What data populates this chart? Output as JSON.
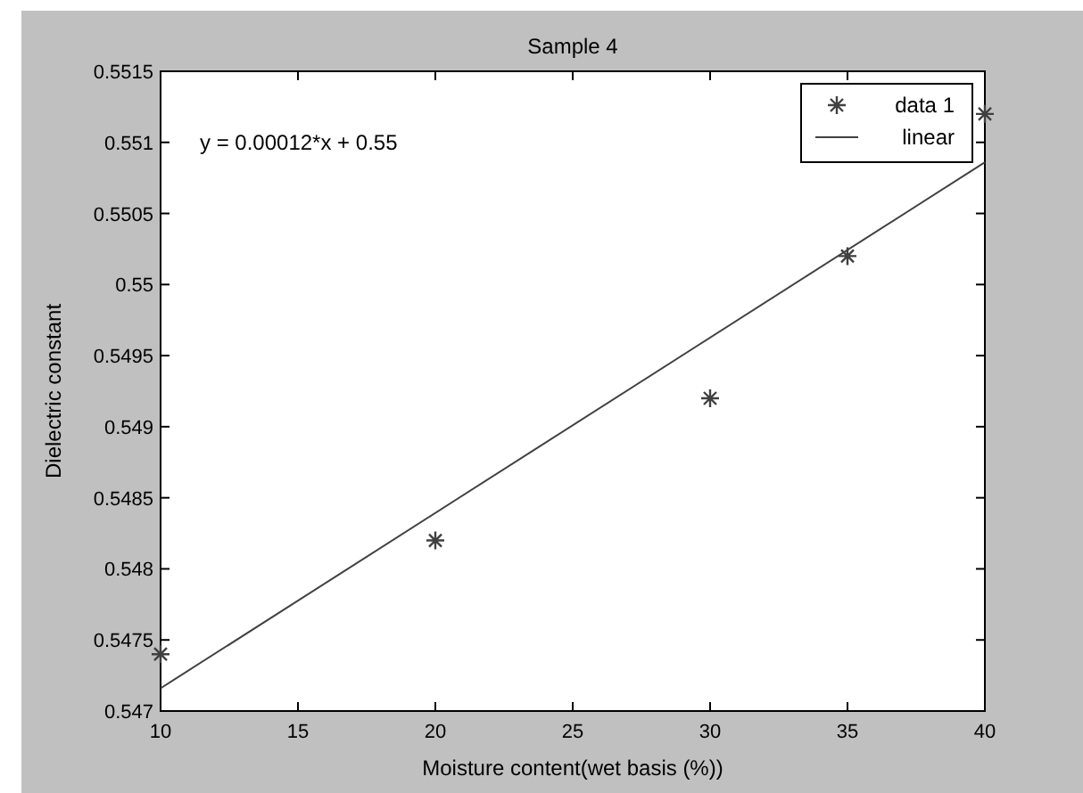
{
  "chart_data": {
    "type": "scatter",
    "title": "Sample 4",
    "xlabel": "Moisture content(wet basis (%))",
    "ylabel": "Dielectric constant",
    "annotations": [
      "y = 0.00012*x + 0.55"
    ],
    "xlim": [
      10,
      40
    ],
    "xticks": [
      10,
      15,
      20,
      25,
      30,
      35,
      40
    ],
    "ylim": [
      0.547,
      0.5515
    ],
    "yticks": [
      0.547,
      0.5475,
      0.548,
      0.5485,
      0.549,
      0.5495,
      0.55,
      0.5505,
      0.551,
      0.5515
    ],
    "legend": "top right",
    "grid": false,
    "series": [
      {
        "name": "data 1",
        "marker": "cross",
        "color": "#404040",
        "x": [
          10,
          20,
          30,
          35,
          40
        ],
        "values": [
          0.5474,
          0.5482,
          0.5492,
          0.5502,
          0.5512
        ]
      },
      {
        "name": "linear",
        "type": "line",
        "marker": "none",
        "line_style": "solid",
        "color": "#404040",
        "x": [
          10,
          40
        ],
        "values": [
          0.54716,
          0.55086
        ]
      }
    ]
  }
}
